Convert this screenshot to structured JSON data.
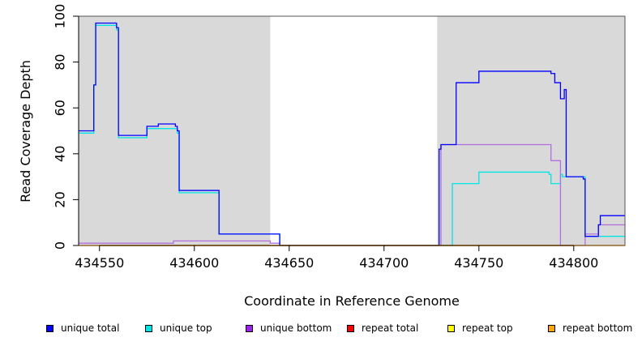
{
  "chart_data": {
    "type": "line",
    "title": "",
    "xlabel": "Coordinate in Reference Genome",
    "ylabel": "Read Coverage Depth",
    "xlim": [
      434539,
      434827
    ],
    "ylim": [
      0,
      100
    ],
    "xticks": [
      434550,
      434600,
      434650,
      434700,
      434750,
      434800
    ],
    "xtick_labels": [
      "434550",
      "434600",
      "434650",
      "434700",
      "434750",
      "434800"
    ],
    "yticks": [
      0,
      20,
      40,
      60,
      80,
      100
    ],
    "ytick_labels": [
      "0",
      "20",
      "40",
      "60",
      "80",
      "100"
    ],
    "shaded_regions": [
      {
        "x0": 434539,
        "x1": 434640,
        "color": "#d9d9d9"
      },
      {
        "x0": 434728,
        "x1": 434827,
        "color": "#d9d9d9"
      }
    ],
    "legend_position": "bottom",
    "series": [
      {
        "name": "unique total",
        "color": "#0000ff",
        "x": [
          434539,
          434546,
          434547,
          434548,
          434558,
          434559,
          434560,
          434575,
          434581,
          434590,
          434591,
          434592,
          434612,
          434613,
          434640,
          434645,
          434728,
          434729,
          434730,
          434737,
          434738,
          434749,
          434750,
          434787,
          434788,
          434790,
          434793,
          434795,
          434796,
          434804,
          434805,
          434806,
          434813,
          434814,
          434827
        ],
        "y": [
          50,
          50,
          70,
          97,
          97,
          95,
          48,
          52,
          53,
          52,
          50,
          24,
          24,
          5,
          5,
          0,
          0,
          42,
          44,
          44,
          71,
          71,
          76,
          76,
          75,
          71,
          64,
          68,
          30,
          30,
          29,
          4,
          9,
          13,
          13
        ]
      },
      {
        "name": "unique top",
        "color": "#00e5e5",
        "x": [
          434539,
          434546,
          434547,
          434548,
          434558,
          434559,
          434560,
          434575,
          434581,
          434590,
          434591,
          434592,
          434612,
          434613,
          434640,
          434645,
          434735,
          434736,
          434749,
          434750,
          434786,
          434787,
          434788,
          434790,
          434793,
          434794,
          434805,
          434806,
          434827
        ],
        "y": [
          49,
          49,
          70,
          96,
          96,
          94,
          47,
          51,
          51,
          51,
          49,
          23,
          23,
          5,
          5,
          0,
          0,
          27,
          27,
          32,
          32,
          31,
          27,
          27,
          31,
          30,
          30,
          4,
          4
        ]
      },
      {
        "name": "unique bottom",
        "color": "#b36ee0",
        "x": [
          434539,
          434578,
          434589,
          434640,
          434645,
          434728,
          434729,
          434730,
          434787,
          434788,
          434792,
          434793,
          434805,
          434806,
          434812,
          434813,
          434827
        ],
        "y": [
          1,
          1,
          2,
          1,
          0,
          0,
          0,
          44,
          44,
          37,
          37,
          0,
          0,
          5,
          5,
          9,
          9
        ]
      },
      {
        "name": "repeat total",
        "color": "#ff0000",
        "x": [
          434539,
          434827
        ],
        "y": [
          0,
          0
        ]
      },
      {
        "name": "repeat top",
        "color": "#ffff00",
        "x": [
          434539,
          434827
        ],
        "y": [
          0,
          0
        ]
      },
      {
        "name": "repeat bottom",
        "color": "#ffa500",
        "x": [
          434539,
          434827
        ],
        "y": [
          0,
          0
        ]
      }
    ]
  },
  "legend": [
    {
      "label": "unique total",
      "color": "#0000ff"
    },
    {
      "label": "unique top",
      "color": "#00e5e5"
    },
    {
      "label": "unique bottom",
      "color": "#a020f0"
    },
    {
      "label": "repeat total",
      "color": "#ff0000"
    },
    {
      "label": "repeat top",
      "color": "#ffff00"
    },
    {
      "label": "repeat bottom",
      "color": "#ffa500"
    }
  ]
}
